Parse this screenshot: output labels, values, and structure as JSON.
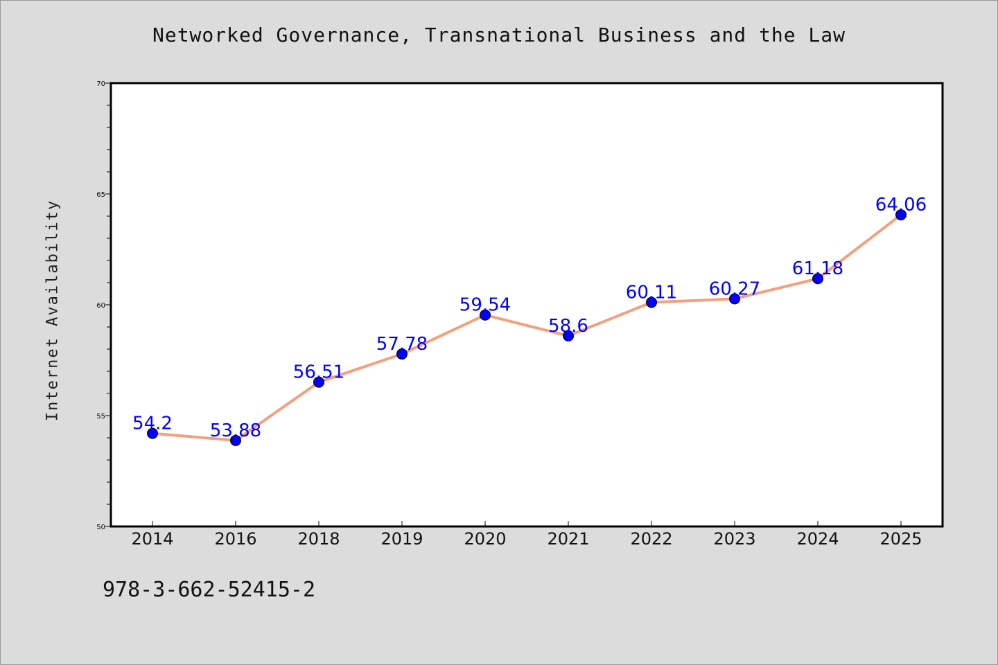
{
  "isbn": "978-3-662-52415-2",
  "chart_data": {
    "type": "line",
    "title": "Networked Governance, Transnational Business and the Law",
    "xlabel": "",
    "ylabel": "Internet Availability",
    "categories": [
      "2014",
      "2016",
      "2018",
      "2019",
      "2020",
      "2021",
      "2022",
      "2023",
      "2024",
      "2025"
    ],
    "values": [
      54.2,
      53.88,
      56.51,
      57.78,
      59.54,
      58.6,
      60.11,
      60.27,
      61.18,
      64.06
    ],
    "data_labels": [
      "54.2",
      "53.88",
      "56.51",
      "57.78",
      "59.54",
      "58.6",
      "60.11",
      "60.27",
      "61.18",
      "64.06"
    ],
    "ylim": [
      50,
      70
    ],
    "yticks": [
      "50",
      "55",
      "60",
      "65",
      "70"
    ],
    "grid": false,
    "legend": "none",
    "colors": {
      "line": "#f4a07c",
      "marker": "#0000ff",
      "data_label": "#0000ff",
      "background": "#dcdcdc",
      "plot_background": "#ffffff"
    }
  }
}
